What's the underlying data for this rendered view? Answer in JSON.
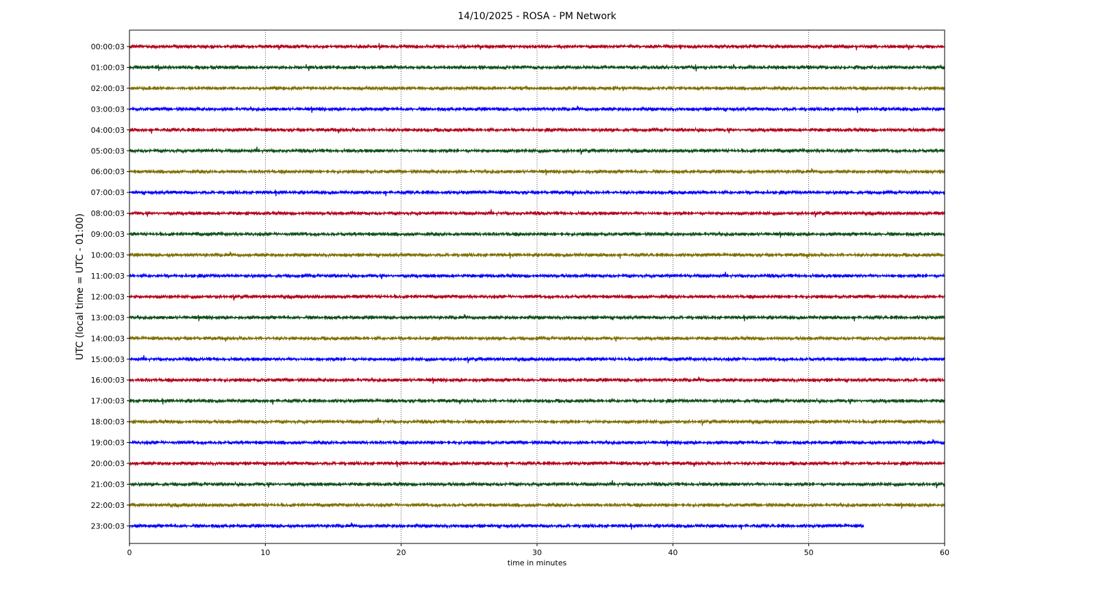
{
  "chart_data": {
    "type": "line",
    "title": "14/10/2025 - ROSA - PM Network",
    "xlabel": "time in minutes",
    "ylabel": "UTC (local time = UTC - 01:00)",
    "xlim": [
      0,
      60
    ],
    "x_ticks": [
      0,
      10,
      20,
      30,
      40,
      50,
      60
    ],
    "grid": "vertical dotted lines at x ticks",
    "color_cycle": [
      "#b30018",
      "#0b4d14",
      "#7f6e00",
      "#0000ff"
    ],
    "series": [
      {
        "name": "00:00:03",
        "x_end": 60
      },
      {
        "name": "01:00:03",
        "x_end": 60
      },
      {
        "name": "02:00:03",
        "x_end": 60
      },
      {
        "name": "03:00:03",
        "x_end": 60
      },
      {
        "name": "04:00:03",
        "x_end": 60
      },
      {
        "name": "05:00:03",
        "x_end": 60
      },
      {
        "name": "06:00:03",
        "x_end": 60
      },
      {
        "name": "07:00:03",
        "x_end": 60
      },
      {
        "name": "08:00:03",
        "x_end": 60
      },
      {
        "name": "09:00:03",
        "x_end": 60
      },
      {
        "name": "10:00:03",
        "x_end": 60
      },
      {
        "name": "11:00:03",
        "x_end": 60
      },
      {
        "name": "12:00:03",
        "x_end": 60
      },
      {
        "name": "13:00:03",
        "x_end": 60
      },
      {
        "name": "14:00:03",
        "x_end": 60
      },
      {
        "name": "15:00:03",
        "x_end": 60
      },
      {
        "name": "16:00:03",
        "x_end": 60
      },
      {
        "name": "17:00:03",
        "x_end": 60
      },
      {
        "name": "18:00:03",
        "x_end": 60
      },
      {
        "name": "19:00:03",
        "x_end": 60
      },
      {
        "name": "20:00:03",
        "x_end": 60
      },
      {
        "name": "21:00:03",
        "x_end": 60
      },
      {
        "name": "22:00:03",
        "x_end": 60
      },
      {
        "name": "23:00:03",
        "x_end": 54
      }
    ]
  }
}
